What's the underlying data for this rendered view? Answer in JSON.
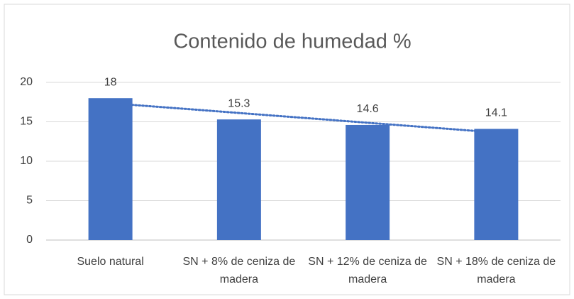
{
  "chart_data": {
    "type": "bar",
    "title": "Contenido de humedad %",
    "categories": [
      "Suelo natural",
      "SN + 8% de ceniza de madera",
      "SN + 12% de ceniza de madera",
      "SN + 18% de ceniza de madera"
    ],
    "values": [
      18,
      15.3,
      14.6,
      14.1
    ],
    "color": "#4472c4",
    "ylim": [
      0,
      20
    ],
    "yticks": [
      0,
      5,
      10,
      15,
      20
    ],
    "grid": true,
    "trendline": {
      "type": "linear",
      "color": "#4472c4",
      "style": "dotted"
    }
  }
}
